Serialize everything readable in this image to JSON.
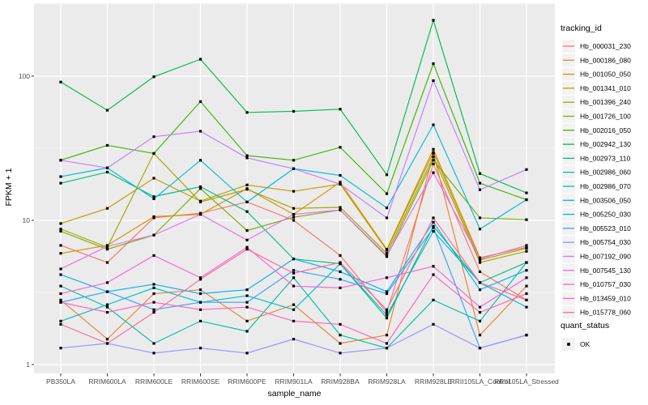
{
  "figure": {
    "x_axis_title": "sample_name",
    "y_axis_title": "FPKM + 1",
    "legend_tracking_title": "tracking_id",
    "legend_quant_title": "quant_status",
    "quant_status_label": "OK"
  },
  "colors": {
    "panel_background": "#EBEBEB",
    "gridline": "#FFFFFF",
    "axis_text": "#4D4D4D",
    "tick_mark": "#333333",
    "label_text": "#000000",
    "legend_key_background": "#F2F2F2",
    "point": "#000000",
    "page_background": "#FFFFFF"
  },
  "chart_data": {
    "type": "line",
    "title": "",
    "xlabel": "sample_name",
    "ylabel": "FPKM + 1",
    "y_scale": "log10",
    "y_breaks": [
      1,
      10,
      100
    ],
    "y_minor_breaks": [
      3.162,
      31.62,
      316.2
    ],
    "ylim": [
      0.87,
      321
    ],
    "grid": true,
    "legend_position": "right",
    "point_marker": "small-black-square",
    "quant_status": "OK",
    "categories": [
      "PB350LA",
      "RRIM600LA",
      "RRIM600LE",
      "RRIM600SE",
      "RRIM600PE",
      "RRIM901LA",
      "RRIM928BA",
      "RRIM928LA",
      "RRIM928LE",
      "RRII105LA_Control",
      "RRII105LA_Stressed"
    ],
    "series": [
      {
        "name": "Hb_000031_230",
        "color": "#F8766D",
        "values": [
          6.7,
          5.1,
          10.4,
          11.2,
          13.4,
          10.0,
          5.7,
          2.3,
          24.6,
          4.4,
          2.8
        ]
      },
      {
        "name": "Hb_000186_080",
        "color": "#EA8331",
        "values": [
          2.8,
          1.5,
          3.1,
          3.3,
          2.0,
          2.6,
          1.4,
          1.6,
          29.1,
          1.6,
          3.5
        ]
      },
      {
        "name": "Hb_001050_050",
        "color": "#D89000",
        "values": [
          5.9,
          6.7,
          10.6,
          11.0,
          16.6,
          11.0,
          18.4,
          6.3,
          31.1,
          5.5,
          6.5
        ]
      },
      {
        "name": "Hb_001341_010",
        "color": "#C09B00",
        "values": [
          9.5,
          12.1,
          19.6,
          13.6,
          17.6,
          15.9,
          17.8,
          6.2,
          29.6,
          5.3,
          6.4
        ]
      },
      {
        "name": "Hb_001396_240",
        "color": "#A3A500",
        "values": [
          8.7,
          6.5,
          29.1,
          13.4,
          16.4,
          12.1,
          12.3,
          5.9,
          27.6,
          5.1,
          6.1
        ]
      },
      {
        "name": "Hb_001726_100",
        "color": "#7CAE00",
        "values": [
          8.4,
          6.3,
          7.9,
          16.6,
          8.5,
          10.5,
          11.8,
          5.6,
          26.1,
          10.4,
          10.1
        ]
      },
      {
        "name": "Hb_002016_050",
        "color": "#39B600",
        "values": [
          26.1,
          33.1,
          29.1,
          66.6,
          28.1,
          26.1,
          32.1,
          15.3,
          122,
          18.1,
          13.9
        ]
      },
      {
        "name": "Hb_002942_130",
        "color": "#00BB4E",
        "values": [
          91,
          58,
          99,
          131,
          56,
          57,
          59,
          20.7,
          244,
          21.1,
          15.5
        ]
      },
      {
        "name": "Hb_002973_110",
        "color": "#00BF7D",
        "values": [
          18.1,
          21.6,
          14.6,
          17.1,
          11.5,
          5.4,
          5.0,
          2.1,
          9.1,
          3.7,
          5.1
        ]
      },
      {
        "name": "Hb_002986_060",
        "color": "#00C1A3",
        "values": [
          3.5,
          2.5,
          1.4,
          2.0,
          1.7,
          4.0,
          1.6,
          1.3,
          2.8,
          2.0,
          5.1
        ]
      },
      {
        "name": "Hb_002986_070",
        "color": "#00BFC4",
        "values": [
          2.0,
          2.6,
          3.4,
          2.7,
          3.0,
          2.4,
          5.0,
          2.2,
          8.4,
          3.7,
          2.5
        ]
      },
      {
        "name": "Hb_003506_050",
        "color": "#00BAE0",
        "values": [
          20.1,
          23.1,
          14.1,
          26.1,
          13.4,
          22.8,
          20.5,
          12.2,
          46,
          8.7,
          13.9
        ]
      },
      {
        "name": "Hb_005250_030",
        "color": "#00B0F6",
        "values": [
          4.2,
          3.2,
          3.6,
          3.1,
          3.3,
          5.4,
          4.4,
          3.2,
          9.7,
          3.3,
          4.5
        ]
      },
      {
        "name": "Hb_005523_010",
        "color": "#35A2FF",
        "values": [
          2.7,
          3.2,
          2.4,
          2.7,
          2.7,
          4.5,
          3.9,
          3.1,
          8.9,
          1.3,
          1.6
        ]
      },
      {
        "name": "Hb_005754_030",
        "color": "#9590FF",
        "values": [
          1.3,
          1.4,
          1.2,
          1.3,
          1.2,
          1.5,
          1.2,
          1.3,
          1.9,
          1.3,
          1.6
        ]
      },
      {
        "name": "Hb_007192_090",
        "color": "#C77CFF",
        "values": [
          26.1,
          23.1,
          38,
          41.5,
          27.1,
          22.8,
          17.8,
          10.4,
          93,
          16.3,
          22.5
        ]
      },
      {
        "name": "Hb_007545_130",
        "color": "#E76BF3",
        "values": [
          4.6,
          6.6,
          7.9,
          11.0,
          7.3,
          11.0,
          11.8,
          5.7,
          21.4,
          5.4,
          6.7
        ]
      },
      {
        "name": "Hb_010757_030",
        "color": "#FA62DB",
        "values": [
          3.1,
          3.7,
          5.7,
          4.0,
          6.5,
          3.5,
          3.4,
          4.0,
          4.8,
          2.5,
          4.0
        ]
      },
      {
        "name": "Hb_013459_010",
        "color": "#FF62BC",
        "values": [
          2.7,
          2.3,
          2.7,
          2.4,
          2.5,
          2.0,
          1.9,
          1.4,
          4.2,
          2.3,
          3.1
        ]
      },
      {
        "name": "Hb_015778_060",
        "color": "#FF6A98",
        "values": [
          1.9,
          1.4,
          2.3,
          3.9,
          6.3,
          4.3,
          5.1,
          2.4,
          10.4,
          3.7,
          2.8
        ]
      }
    ]
  }
}
